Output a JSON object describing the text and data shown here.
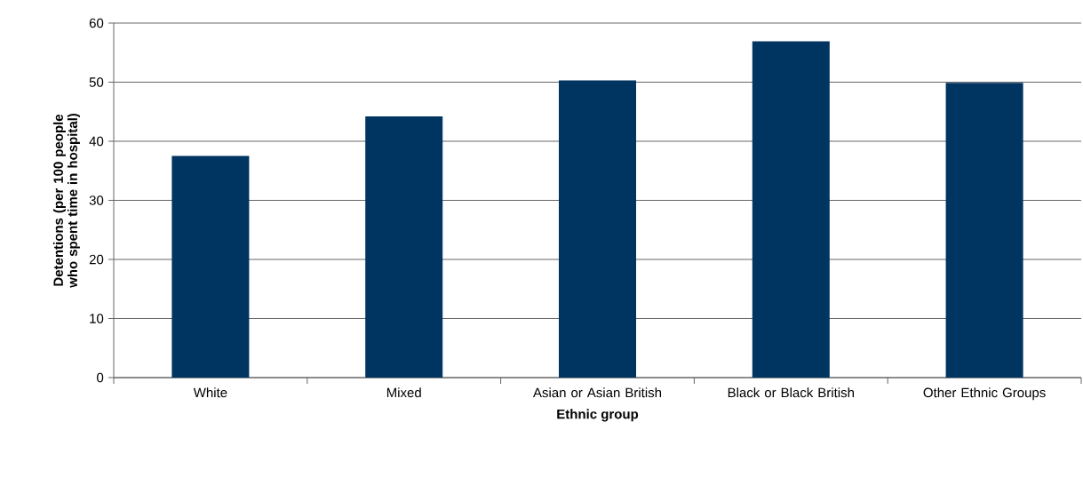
{
  "chart_data": {
    "type": "bar",
    "xlabel": "Ethnic group",
    "ylabel": "Detentions (per 100 people who spent time in hospital)",
    "categories": [
      "White",
      "Mixed",
      "Asian or Asian British",
      "Black or Black British",
      "Other Ethnic Groups"
    ],
    "values": [
      37.5,
      44.2,
      50.3,
      56.9,
      49.9
    ],
    "color": "#003461",
    "ylim": [
      0,
      60
    ],
    "yticks": [
      0,
      10,
      20,
      30,
      40,
      50,
      60
    ],
    "grid": "y"
  }
}
